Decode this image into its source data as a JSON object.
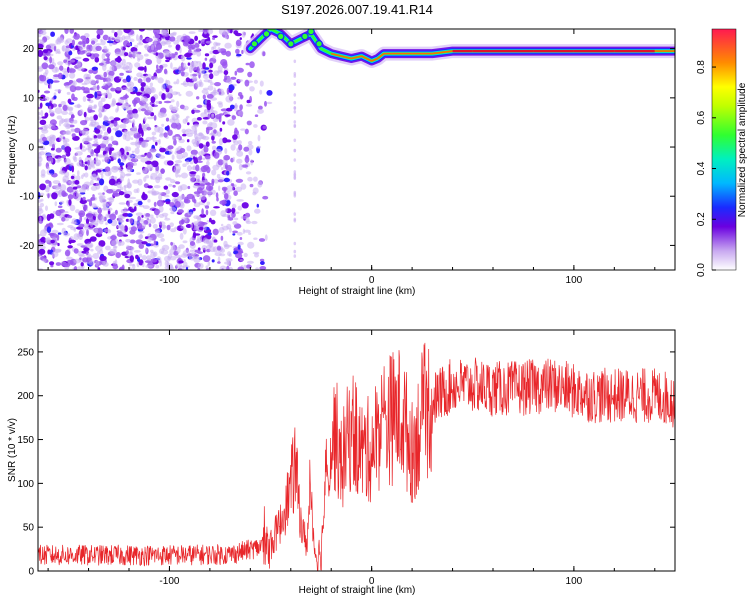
{
  "title": "S197.2026.007.19.41.R14",
  "chart_data": [
    {
      "type": "heatmap",
      "name": "spectrogram",
      "xlabel": "Height of straight line (km)",
      "ylabel": "Frequency (Hz)",
      "xlim": [
        -165,
        150
      ],
      "ylim": [
        -25,
        24
      ],
      "xticks": [
        -100,
        0,
        100
      ],
      "yticks": [
        -20,
        -10,
        0,
        10,
        20
      ],
      "grid": false,
      "colorbar": {
        "label": "Normalized spectral amplitude",
        "range": [
          0,
          0.95
        ],
        "ticks": [
          0,
          0.2,
          0.4,
          0.6,
          0.8
        ]
      },
      "features": {
        "noise_region_x": [
          -165,
          -58
        ],
        "signal_track": [
          [
            -60,
            20
          ],
          [
            -55,
            22
          ],
          [
            -50,
            24
          ],
          [
            -45,
            23
          ],
          [
            -40,
            21
          ],
          [
            -35,
            22
          ],
          [
            -30,
            23
          ],
          [
            -25,
            20
          ],
          [
            -20,
            19
          ],
          [
            -15,
            18.5
          ],
          [
            -10,
            18
          ],
          [
            -5,
            18.5
          ],
          [
            0,
            17.5
          ],
          [
            3,
            18
          ],
          [
            6,
            19
          ],
          [
            10,
            19
          ],
          [
            20,
            19
          ],
          [
            30,
            19
          ],
          [
            40,
            19.5
          ],
          [
            50,
            19.5
          ],
          [
            60,
            19.5
          ],
          [
            80,
            19.5
          ],
          [
            100,
            19.5
          ],
          [
            120,
            19.5
          ],
          [
            140,
            19.5
          ],
          [
            150,
            19.5
          ]
        ]
      }
    },
    {
      "type": "line",
      "name": "snr",
      "xlabel": "Height of straight line (km)",
      "ylabel": "SNR (10 * v/v)",
      "xlim": [
        -165,
        150
      ],
      "ylim": [
        0,
        275
      ],
      "xticks": [
        -100,
        0,
        100
      ],
      "yticks": [
        0,
        50,
        100,
        150,
        200,
        250
      ],
      "color": "#e8262a",
      "grid": false,
      "series": [
        {
          "name": "SNR envelope",
          "x": [
            -165,
            -130,
            -100,
            -70,
            -50,
            -45,
            -40,
            -38,
            -36,
            -34,
            -32,
            -30,
            -28,
            -25,
            -22,
            -20,
            -18,
            -15,
            -10,
            -5,
            0,
            5,
            10,
            15,
            20,
            25,
            30,
            40,
            50,
            60,
            70,
            80,
            90,
            100,
            110,
            120,
            130,
            140,
            150
          ],
          "values": [
            18,
            18,
            18,
            19,
            30,
            55,
            95,
            120,
            80,
            40,
            35,
            90,
            20,
            20,
            130,
            140,
            160,
            120,
            165,
            135,
            140,
            170,
            175,
            180,
            135,
            175,
            195,
            212,
            212,
            208,
            208,
            210,
            212,
            205,
            200,
            200,
            200,
            200,
            195
          ]
        }
      ]
    }
  ]
}
